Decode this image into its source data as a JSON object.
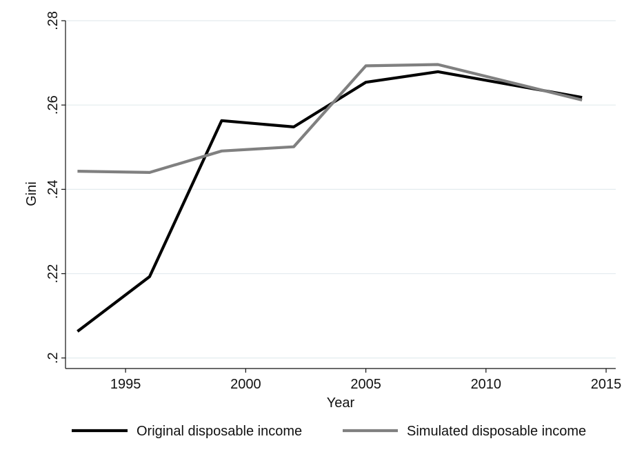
{
  "chart_data": {
    "type": "line",
    "title": "",
    "xlabel": "Year",
    "ylabel": "Gini",
    "xlim": [
      1992.5,
      2015.4
    ],
    "ylim": [
      0.1975,
      0.28
    ],
    "x_ticks": [
      1995,
      2000,
      2005,
      2010,
      2015
    ],
    "x_tick_labels": [
      "1995",
      "2000",
      "2005",
      "2010",
      "2015"
    ],
    "y_ticks": [
      0.2,
      0.22,
      0.24,
      0.26,
      0.28
    ],
    "y_tick_labels": [
      ".2",
      ".22",
      ".24",
      ".26",
      ".28"
    ],
    "grid": true,
    "legend_position": "bottom",
    "series": [
      {
        "name": "Original disposable income",
        "color": "#000000",
        "x": [
          1993,
          1996,
          1999,
          2002,
          2005,
          2008,
          2014
        ],
        "values": [
          0.2063,
          0.2193,
          0.2563,
          0.2548,
          0.2654,
          0.2679,
          0.2618
        ]
      },
      {
        "name": "Simulated disposable income",
        "color": "#808080",
        "x": [
          1993,
          1996,
          1999,
          2002,
          2005,
          2008,
          2014
        ],
        "values": [
          0.2443,
          0.244,
          0.2491,
          0.2501,
          0.2693,
          0.2696,
          0.2612
        ]
      }
    ]
  }
}
